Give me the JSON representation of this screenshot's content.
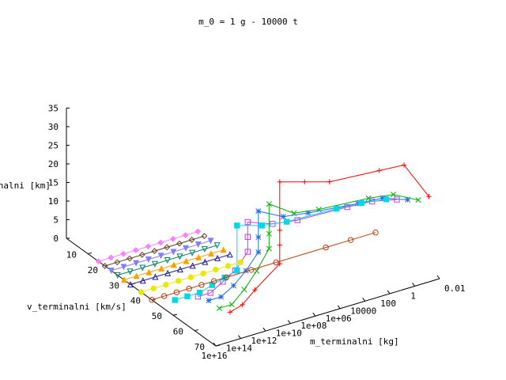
{
  "chart_data": {
    "type": "line",
    "title": "m_0 = 1 g - 10000 t",
    "zlabel": "h_terminalni [km]",
    "ylabel": "v_terminalni [km/s]",
    "xlabel": "m_terminalni [kg]",
    "z_ticks": [
      "0",
      "5",
      "10",
      "15",
      "20",
      "25",
      "30",
      "35"
    ],
    "v_ticks": [
      "10",
      "20",
      "30",
      "40",
      "50",
      "60",
      "70"
    ],
    "m_ticks": [
      "0.01",
      "1",
      "100",
      "10000",
      "1e+06",
      "1e+08",
      "1e+10",
      "1e+12",
      "1e+14",
      "1e+16"
    ],
    "grid": false,
    "series": [
      {
        "color": "#ff0000",
        "marker": "plus",
        "points": [
          [
            0.01,
            65,
            20
          ],
          [
            1,
            65,
            30.5
          ],
          [
            100,
            65,
            31
          ],
          [
            1000000.0,
            65,
            32
          ],
          [
            100000000.0,
            65,
            34
          ],
          [
            10000000000.0,
            65,
            36
          ],
          [
            10000000000.0,
            65,
            23
          ],
          [
            10000000000.0,
            65,
            19
          ],
          [
            10000000000.0,
            65,
            14
          ],
          [
            1000000000000.0,
            65,
            9
          ],
          [
            10000000000000.0,
            65,
            6
          ],
          [
            100000000000000.0,
            65,
            5
          ]
        ]
      },
      {
        "color": "#00b000",
        "marker": "cross",
        "points": [
          [
            0.01,
            60,
            17
          ],
          [
            1,
            60,
            20.5
          ],
          [
            100,
            60,
            21.5
          ],
          [
            1000000.0,
            60,
            22.5
          ],
          [
            100000000.0,
            60,
            23.5
          ],
          [
            10000000000.0,
            60,
            28
          ],
          [
            10000000000.0,
            60,
            20
          ],
          [
            10000000000.0,
            60,
            16
          ],
          [
            100000000000.0,
            60,
            11
          ],
          [
            1000000000000.0,
            60,
            7
          ],
          [
            10000000000000.0,
            60,
            4
          ],
          [
            100000000000000.0,
            60,
            4
          ]
        ]
      },
      {
        "color": "#1e6ee6",
        "marker": "star",
        "points": [
          [
            0.01,
            55,
            15
          ],
          [
            1,
            55,
            17.5
          ],
          [
            100,
            55,
            18
          ],
          [
            1000000.0,
            55,
            19.5
          ],
          [
            100000000.0,
            55,
            20.5
          ],
          [
            10000000000.0,
            55,
            24
          ],
          [
            10000000000.0,
            55,
            17
          ],
          [
            10000000000.0,
            55,
            13
          ],
          [
            100000000000.0,
            55,
            9
          ],
          [
            1000000000000.0,
            55,
            6
          ],
          [
            10000000000000.0,
            55,
            4
          ],
          [
            100000000000000.0,
            55,
            4
          ]
        ]
      },
      {
        "color": "#c040e0",
        "marker": "square",
        "points": [
          [
            0.01,
            50,
            13
          ],
          [
            1,
            50,
            14.5
          ],
          [
            100,
            50,
            15
          ],
          [
            1000000.0,
            50,
            15.5
          ],
          [
            100000000.0,
            50,
            16.5
          ],
          [
            10000000000.0,
            50,
            19
          ],
          [
            10000000000.0,
            50,
            15
          ],
          [
            10000000000.0,
            50,
            11
          ],
          [
            100000000000.0,
            50,
            7
          ],
          [
            1000000000000.0,
            50,
            5
          ],
          [
            10000000000000.0,
            50,
            3
          ],
          [
            100000000000000.0,
            50,
            3
          ]
        ]
      },
      {
        "color": "#00d8e8",
        "marker": "filled-square",
        "points": [
          [
            0.01,
            45,
            11
          ],
          [
            1,
            45,
            12
          ],
          [
            100,
            45,
            12.5
          ],
          [
            1000000.0,
            45,
            13
          ],
          [
            100000000.0,
            45,
            14
          ],
          [
            10000000000.0,
            45,
            16
          ],
          [
            10000000000.0,
            45,
            4
          ],
          [
            100000000000.0,
            45,
            3
          ],
          [
            1000000000000.0,
            45,
            2
          ],
          [
            10000000000000.0,
            45,
            1
          ],
          [
            100000000000000.0,
            45,
            1
          ],
          [
            1000000000000000.0,
            45,
            1
          ]
        ]
      },
      {
        "color": "#b04010",
        "marker": "circle",
        "points": [
          [
            0.01,
            40,
            0
          ],
          [
            1,
            40,
            0
          ],
          [
            100,
            40,
            0
          ],
          [
            1000000.0,
            40,
            0
          ],
          [
            100000000.0,
            40,
            0
          ],
          [
            10000000000.0,
            40,
            0
          ],
          [
            100000000000.0,
            40,
            0
          ],
          [
            1000000000000.0,
            40,
            0
          ],
          [
            10000000000000.0,
            40,
            0
          ],
          [
            100000000000000.0,
            40,
            0
          ],
          [
            1000000000000000.0,
            40,
            0
          ],
          [
            1e+16,
            40,
            0
          ]
        ]
      },
      {
        "color": "#e8e800",
        "marker": "filled-circle",
        "points": [
          [
            100000000.0,
            35,
            0
          ],
          [
            1000000000.0,
            35,
            0
          ],
          [
            10000000000.0,
            35,
            0
          ],
          [
            100000000000.0,
            35,
            0
          ],
          [
            1000000000000.0,
            35,
            0
          ],
          [
            10000000000000.0,
            35,
            0
          ],
          [
            100000000000000.0,
            35,
            0
          ],
          [
            1000000000000000.0,
            35,
            0
          ],
          [
            1e+16,
            35,
            0
          ]
        ]
      },
      {
        "color": "#1a1a90",
        "marker": "triangle",
        "points": [
          [
            100000000.0,
            30,
            0
          ],
          [
            1000000000.0,
            30,
            0
          ],
          [
            10000000000.0,
            30,
            0
          ],
          [
            100000000000.0,
            30,
            0
          ],
          [
            1000000000000.0,
            30,
            0
          ],
          [
            10000000000000.0,
            30,
            0
          ],
          [
            100000000000000.0,
            30,
            0
          ],
          [
            1000000000000000.0,
            30,
            0
          ],
          [
            1e+16,
            30,
            0
          ]
        ]
      },
      {
        "color": "#ffa000",
        "marker": "filled-triangle",
        "points": [
          [
            100000000.0,
            27,
            0
          ],
          [
            1000000000.0,
            27,
            0
          ],
          [
            10000000000.0,
            27,
            0
          ],
          [
            100000000000.0,
            27,
            0
          ],
          [
            1000000000000.0,
            27,
            0
          ],
          [
            10000000000000.0,
            27,
            0
          ],
          [
            100000000000000.0,
            27,
            0
          ],
          [
            1000000000000000.0,
            27,
            0
          ],
          [
            1e+16,
            27,
            0
          ]
        ]
      },
      {
        "color": "#008060",
        "marker": "triangle-down",
        "points": [
          [
            100000000.0,
            24,
            0
          ],
          [
            1000000000.0,
            24,
            0
          ],
          [
            10000000000.0,
            24,
            0
          ],
          [
            100000000000.0,
            24,
            0
          ],
          [
            1000000000000.0,
            24,
            0
          ],
          [
            10000000000000.0,
            24,
            0
          ],
          [
            100000000000000.0,
            24,
            0
          ],
          [
            1000000000000000.0,
            24,
            0
          ],
          [
            1e+16,
            24,
            0
          ]
        ]
      },
      {
        "color": "#8080ff",
        "marker": "filled-triangle-down",
        "points": [
          [
            100000000.0,
            21,
            0
          ],
          [
            1000000000.0,
            21,
            0
          ],
          [
            10000000000.0,
            21,
            0
          ],
          [
            100000000000.0,
            21,
            0
          ],
          [
            1000000000000.0,
            21,
            0
          ],
          [
            10000000000000.0,
            21,
            0
          ],
          [
            100000000000000.0,
            21,
            0
          ],
          [
            1000000000000000.0,
            21,
            0
          ],
          [
            1e+16,
            21,
            0
          ]
        ]
      },
      {
        "color": "#604020",
        "marker": "diamond",
        "points": [
          [
            100000000.0,
            18,
            0
          ],
          [
            1000000000.0,
            18,
            0
          ],
          [
            10000000000.0,
            18,
            0
          ],
          [
            100000000000.0,
            18,
            0
          ],
          [
            1000000000000.0,
            18,
            0
          ],
          [
            10000000000000.0,
            18,
            0
          ],
          [
            100000000000000.0,
            18,
            0
          ],
          [
            1000000000000000.0,
            18,
            0
          ],
          [
            1e+16,
            18,
            0
          ]
        ]
      },
      {
        "color": "#ff80ff",
        "marker": "filled-diamond",
        "points": [
          [
            100000000.0,
            15,
            0
          ],
          [
            1000000000.0,
            15,
            0
          ],
          [
            10000000000.0,
            15,
            0
          ],
          [
            100000000000.0,
            15,
            0
          ],
          [
            1000000000000.0,
            15,
            0
          ],
          [
            10000000000000.0,
            15,
            0
          ],
          [
            100000000000000.0,
            15,
            0
          ],
          [
            1000000000000000.0,
            15,
            0
          ],
          [
            1e+16,
            15,
            0
          ]
        ]
      }
    ]
  }
}
